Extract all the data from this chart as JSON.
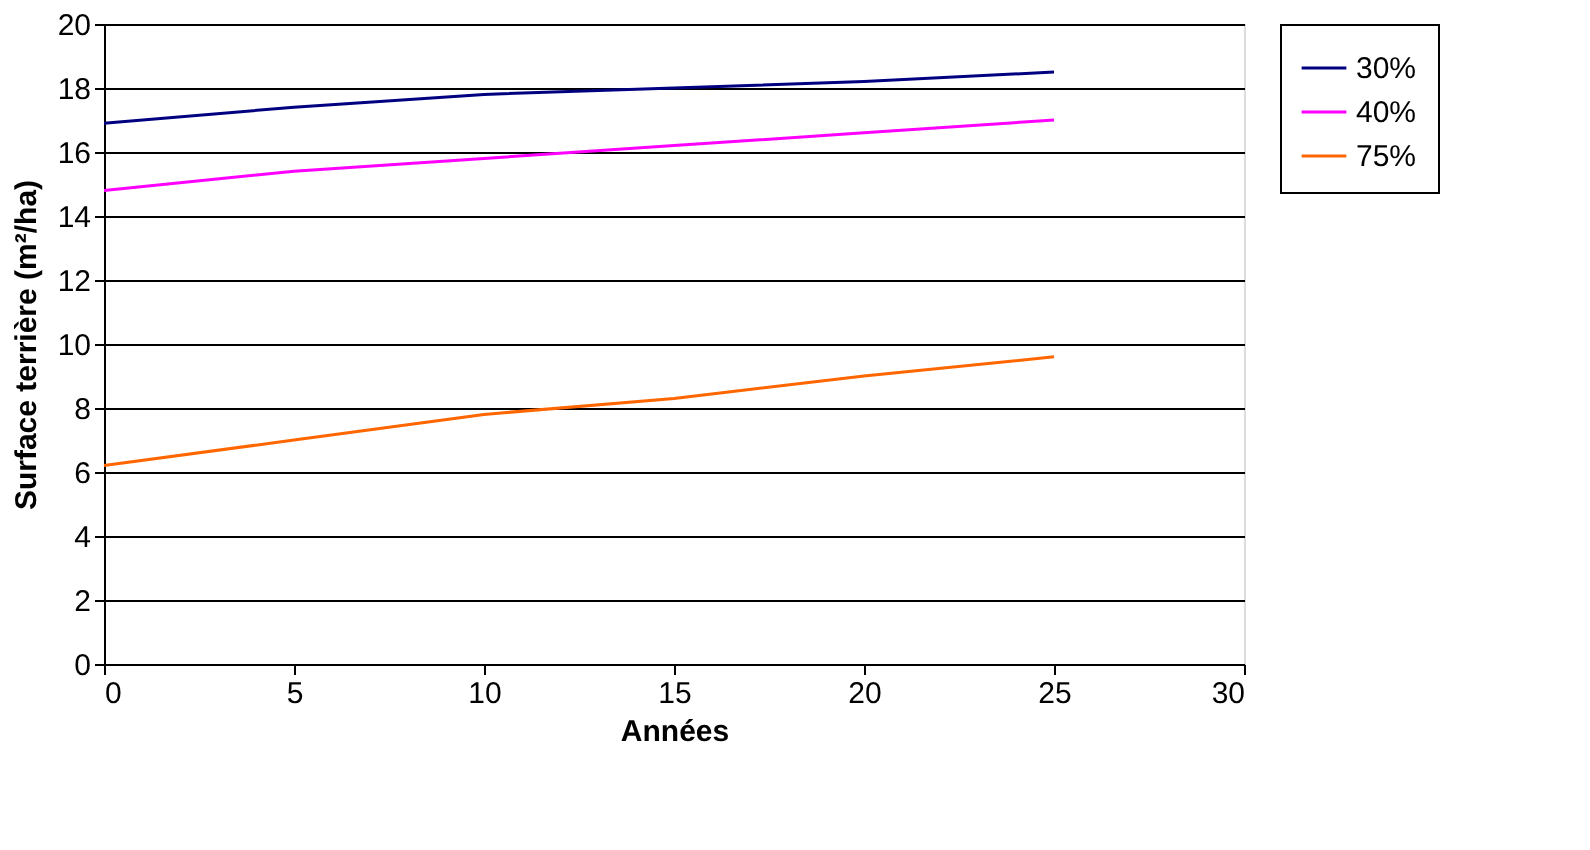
{
  "chart_data": {
    "type": "line",
    "xlabel": "Années",
    "ylabel": "Surface terrière (m²/ha)",
    "x": [
      0,
      5,
      10,
      15,
      20,
      25
    ],
    "series": [
      {
        "name": "30%",
        "color": "#000080",
        "values": [
          16.9,
          17.4,
          17.8,
          18.0,
          18.2,
          18.5
        ]
      },
      {
        "name": "40%",
        "color": "#ff00ff",
        "values": [
          14.8,
          15.4,
          15.8,
          16.2,
          16.6,
          17.0
        ]
      },
      {
        "name": "75%",
        "color": "#ff6600",
        "values": [
          6.2,
          7.0,
          7.8,
          8.3,
          9.0,
          9.6
        ]
      }
    ],
    "xlim": [
      0,
      30
    ],
    "xticks": [
      0,
      5,
      10,
      15,
      20,
      25,
      30
    ],
    "ylim": [
      0,
      20
    ],
    "yticks": [
      0,
      2,
      4,
      6,
      8,
      10,
      12,
      14,
      16,
      18,
      20
    ],
    "grid": "y",
    "legend": "right",
    "marker": "none",
    "line_style": "solid"
  }
}
